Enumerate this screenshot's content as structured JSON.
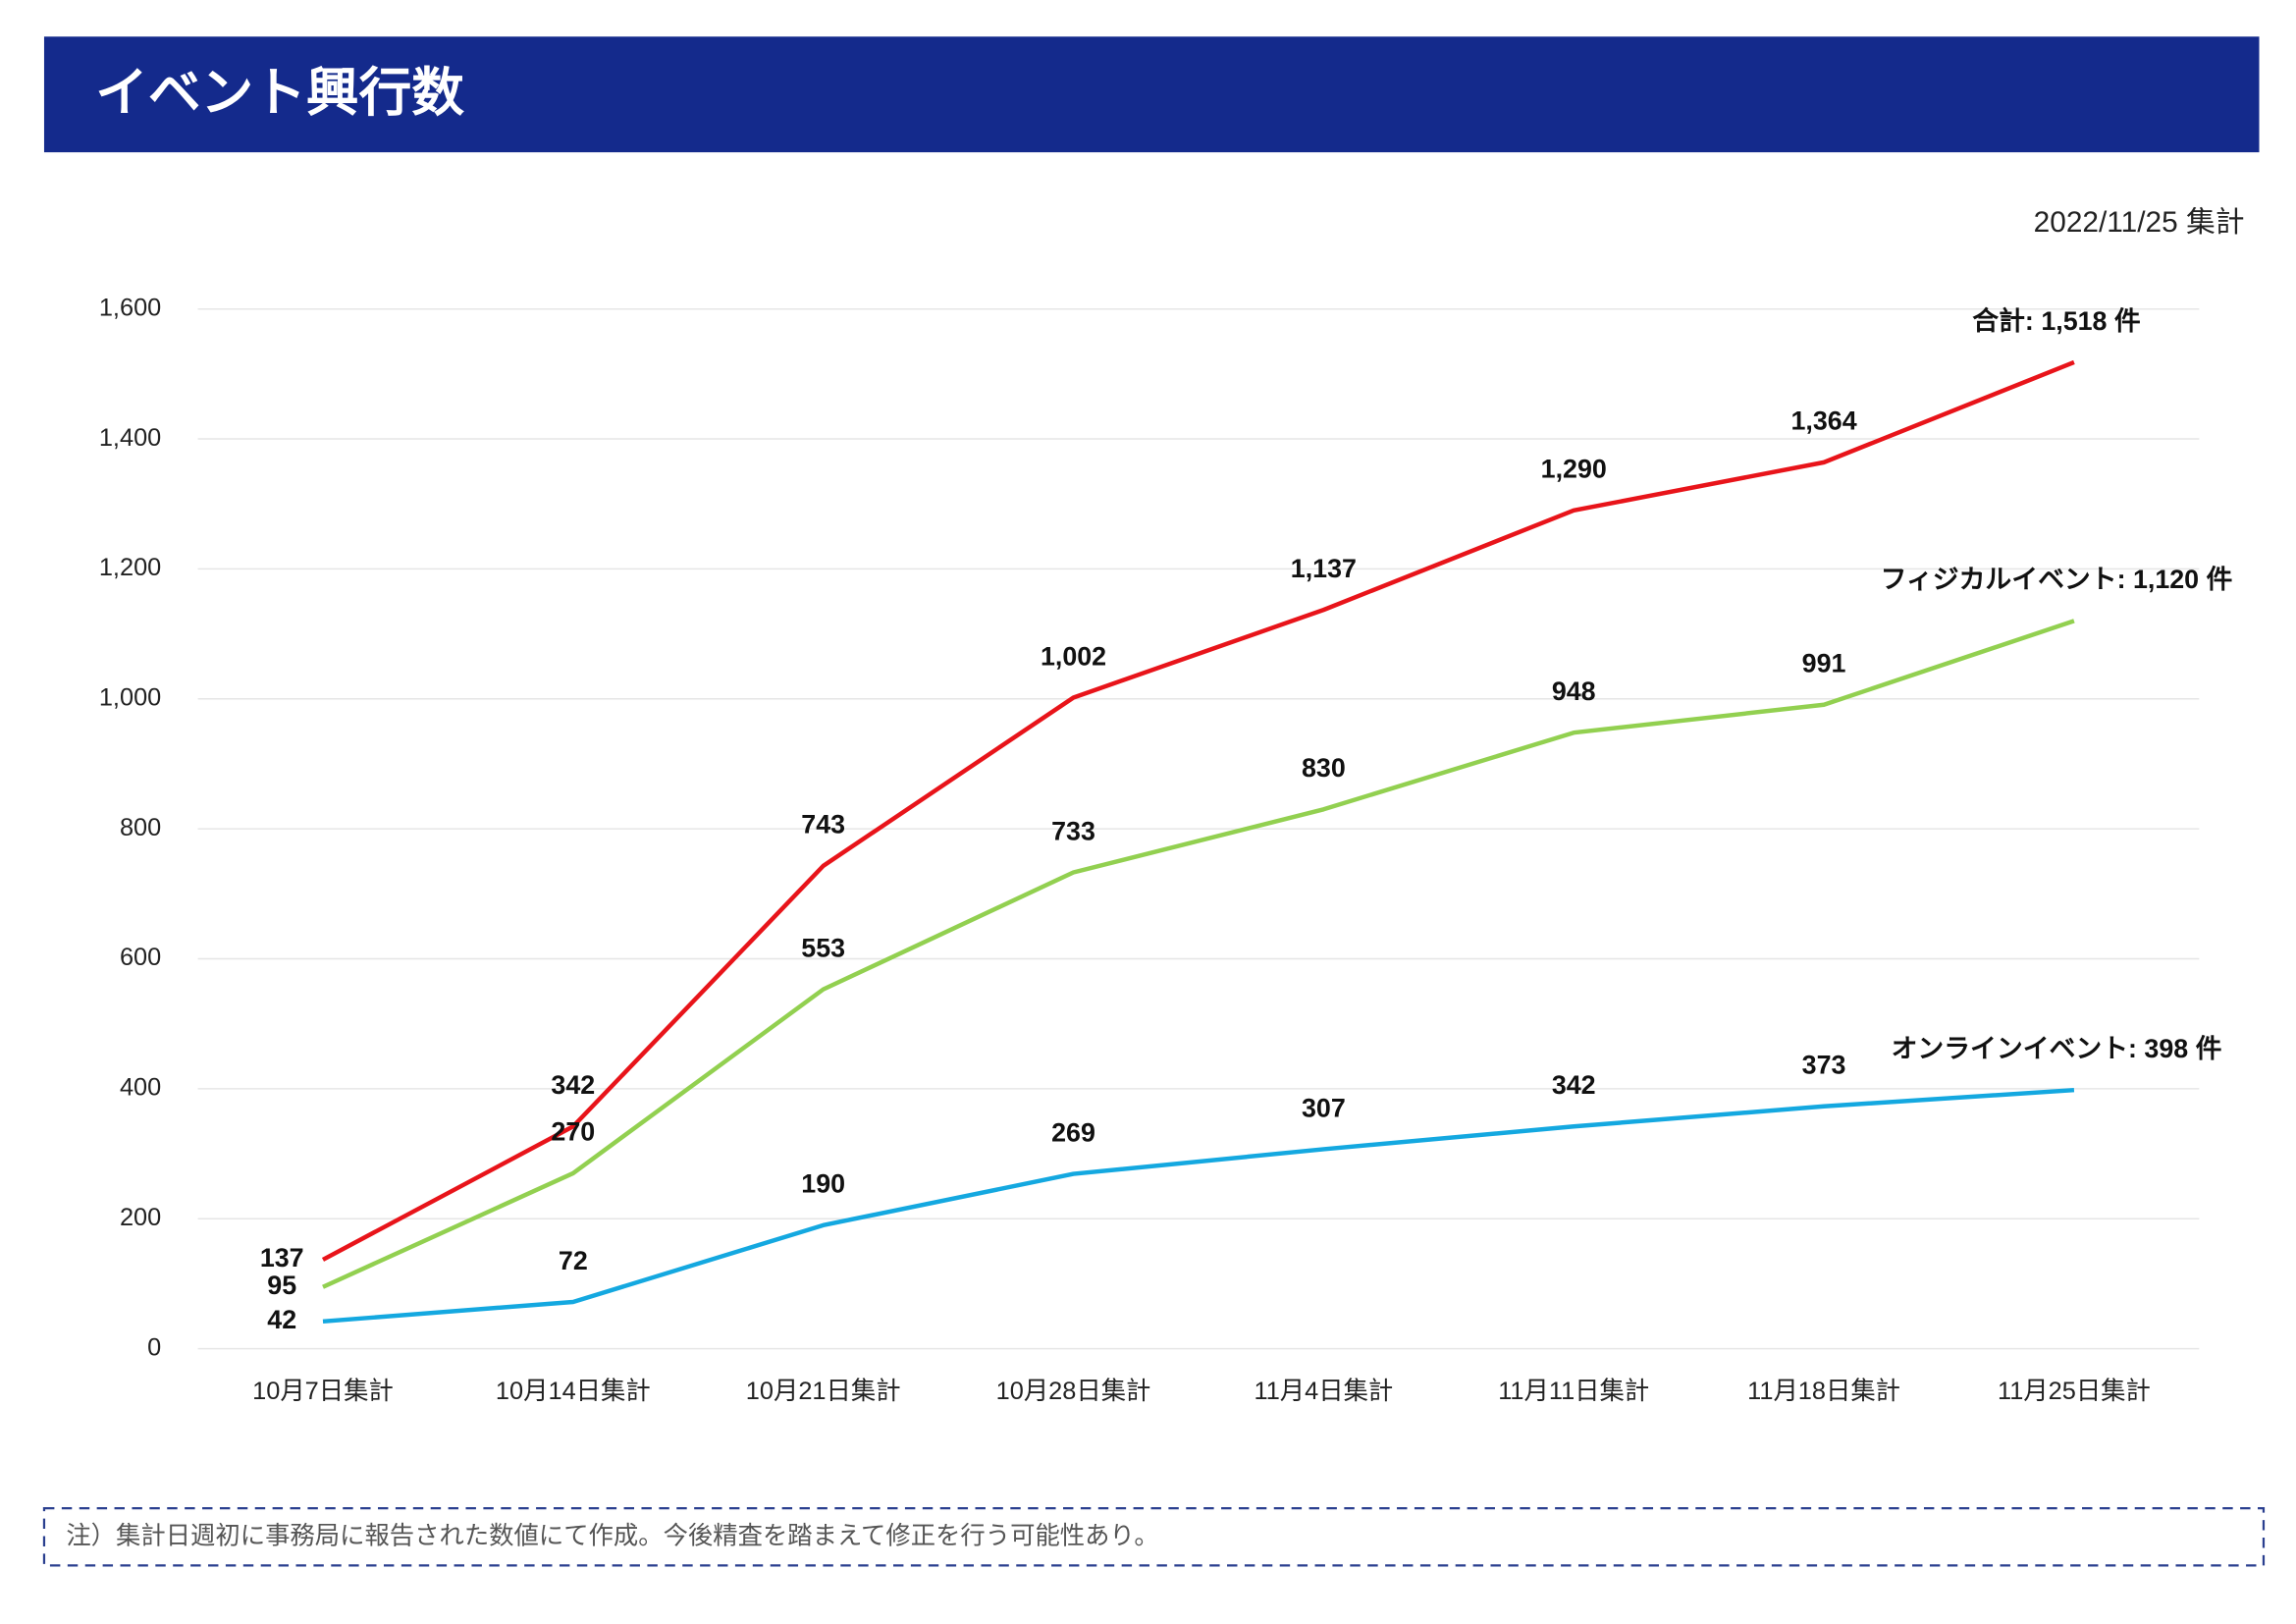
{
  "chart_data": {
    "type": "line",
    "title": "イベント興行数",
    "subtitle": "2022/11/25 集計",
    "note": "注）集計日週初に事務局に報告された数値にて作成。今後精査を踏まえて修正を行う可能性あり。",
    "categories": [
      "10月7日集計",
      "10月14日集計",
      "10月21日集計",
      "10月28日集計",
      "11月4日集計",
      "11月11日集計",
      "11月18日集計",
      "11月25日集計"
    ],
    "series": [
      {
        "color": "#e8141a",
        "values": [
          137,
          342,
          743,
          1002,
          1137,
          1290,
          1364,
          1518
        ],
        "value_labels": [
          "137",
          "342",
          "743",
          "1,002",
          "1,137",
          "1,290",
          "1,364",
          "合計: 1,518 件"
        ]
      },
      {
        "color": "#92d050",
        "values": [
          95,
          270,
          553,
          733,
          830,
          948,
          991,
          1120
        ],
        "value_labels": [
          "95",
          "270",
          "553",
          "733",
          "830",
          "948",
          "991",
          "フィジカルイベント: 1,120 件"
        ]
      },
      {
        "color": "#14a8e0",
        "values": [
          42,
          72,
          190,
          269,
          307,
          342,
          373,
          398
        ],
        "value_labels": [
          "42",
          "72",
          "190",
          "269",
          "307",
          "342",
          "373",
          "オンラインイベント: 398 件"
        ]
      }
    ],
    "ylim": [
      0,
      1600
    ],
    "yticks": [
      0,
      200,
      400,
      600,
      800,
      {
        "value": 1000,
        "label": "1,000"
      },
      {
        "value": 1200,
        "label": "1,200"
      },
      {
        "value": 1400,
        "label": "1,400"
      },
      {
        "value": 1600,
        "label": "1,600"
      }
    ],
    "grid": true
  }
}
